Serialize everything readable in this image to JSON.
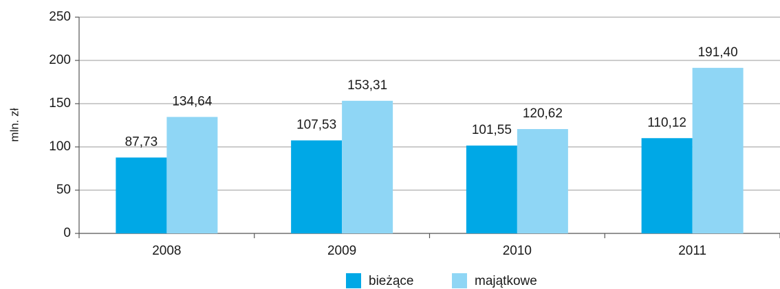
{
  "chart_data": {
    "type": "bar",
    "y_label": "mln. zł",
    "categories": [
      "2008",
      "2009",
      "2010",
      "2011"
    ],
    "series": [
      {
        "name": "bieżące",
        "color": "#00a8e6",
        "values": [
          87.73,
          107.53,
          101.55,
          110.12
        ],
        "value_labels": [
          "87,73",
          "107,53",
          "101,55",
          "110,12"
        ]
      },
      {
        "name": "majątkowe",
        "color": "#8fd6f5",
        "values": [
          134.64,
          153.31,
          120.62,
          191.4
        ],
        "value_labels": [
          "134,64",
          "153,31",
          "120,62",
          "191,40"
        ]
      }
    ],
    "ylim": [
      0,
      250
    ],
    "yticks": [
      0,
      50,
      100,
      150,
      200,
      250
    ],
    "grid": true,
    "legend": "bottom"
  }
}
